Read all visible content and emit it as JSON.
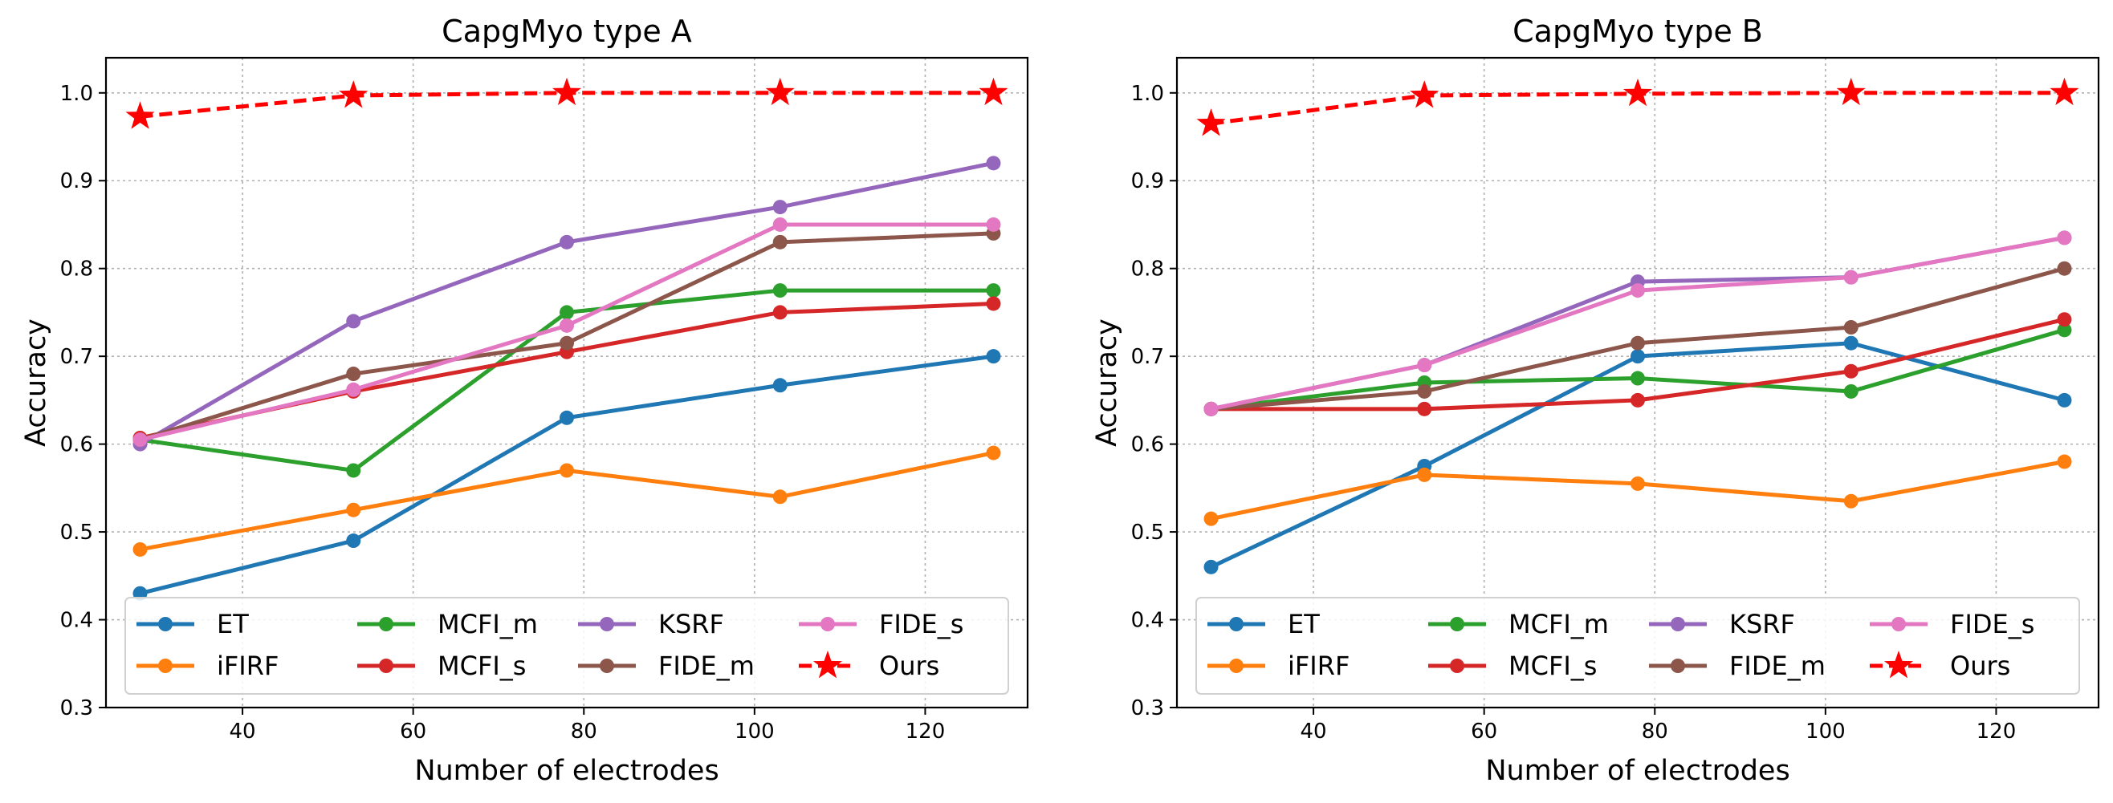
{
  "chart_data": [
    {
      "type": "line",
      "title": "CapgMyo type A",
      "xlabel": "Number of electrodes",
      "ylabel": "Accuracy",
      "x": [
        28,
        53,
        78,
        103,
        128
      ],
      "xlim": [
        24,
        132
      ],
      "ylim": [
        0.3,
        1.04
      ],
      "xticks": [
        40,
        60,
        80,
        100,
        120
      ],
      "yticks": [
        0.3,
        0.4,
        0.5,
        0.6,
        0.7,
        0.8,
        0.9,
        1.0
      ],
      "grid": true,
      "legend_position": "lower center",
      "series": [
        {
          "name": "ET",
          "color": "#1f77b4",
          "marker": "circle",
          "line": "solid",
          "values": [
            0.43,
            0.49,
            0.63,
            0.667,
            0.7
          ]
        },
        {
          "name": "iFIRF",
          "color": "#ff7f0e",
          "marker": "circle",
          "line": "solid",
          "values": [
            0.48,
            0.525,
            0.57,
            0.54,
            0.59
          ]
        },
        {
          "name": "MCFI_m",
          "color": "#2ca02c",
          "marker": "circle",
          "line": "solid",
          "values": [
            0.605,
            0.57,
            0.75,
            0.775,
            0.775
          ]
        },
        {
          "name": "MCFI_s",
          "color": "#d62728",
          "marker": "circle",
          "line": "solid",
          "values": [
            0.607,
            0.66,
            0.705,
            0.75,
            0.76
          ]
        },
        {
          "name": "KSRF",
          "color": "#9467bd",
          "marker": "circle",
          "line": "solid",
          "values": [
            0.6,
            0.74,
            0.83,
            0.87,
            0.92
          ]
        },
        {
          "name": "FIDE_m",
          "color": "#8c564b",
          "marker": "circle",
          "line": "solid",
          "values": [
            0.605,
            0.68,
            0.715,
            0.83,
            0.84
          ]
        },
        {
          "name": "FIDE_s",
          "color": "#e377c2",
          "marker": "circle",
          "line": "solid",
          "values": [
            0.605,
            0.662,
            0.735,
            0.85,
            0.85
          ]
        },
        {
          "name": "Ours",
          "color": "#ff0000",
          "marker": "star",
          "line": "dashed",
          "values": [
            0.973,
            0.997,
            1.0,
            1.0,
            1.0
          ]
        }
      ]
    },
    {
      "type": "line",
      "title": "CapgMyo type B",
      "xlabel": "Number of electrodes",
      "ylabel": "Accuracy",
      "x": [
        28,
        53,
        78,
        103,
        128
      ],
      "xlim": [
        24,
        132
      ],
      "ylim": [
        0.3,
        1.04
      ],
      "xticks": [
        40,
        60,
        80,
        100,
        120
      ],
      "yticks": [
        0.3,
        0.4,
        0.5,
        0.6,
        0.7,
        0.8,
        0.9,
        1.0
      ],
      "grid": true,
      "legend_position": "lower center",
      "series": [
        {
          "name": "ET",
          "color": "#1f77b4",
          "marker": "circle",
          "line": "solid",
          "values": [
            0.46,
            0.575,
            0.7,
            0.715,
            0.65
          ]
        },
        {
          "name": "iFIRF",
          "color": "#ff7f0e",
          "marker": "circle",
          "line": "solid",
          "values": [
            0.515,
            0.565,
            0.555,
            0.535,
            0.58
          ]
        },
        {
          "name": "MCFI_m",
          "color": "#2ca02c",
          "marker": "circle",
          "line": "solid",
          "values": [
            0.64,
            0.67,
            0.675,
            0.66,
            0.73
          ]
        },
        {
          "name": "MCFI_s",
          "color": "#d62728",
          "marker": "circle",
          "line": "solid",
          "values": [
            0.64,
            0.64,
            0.65,
            0.683,
            0.742
          ]
        },
        {
          "name": "KSRF",
          "color": "#9467bd",
          "marker": "circle",
          "line": "solid",
          "values": [
            0.64,
            0.69,
            0.785,
            0.79,
            0.835
          ]
        },
        {
          "name": "FIDE_m",
          "color": "#8c564b",
          "marker": "circle",
          "line": "solid",
          "values": [
            0.64,
            0.66,
            0.715,
            0.733,
            0.8
          ]
        },
        {
          "name": "FIDE_s",
          "color": "#e377c2",
          "marker": "circle",
          "line": "solid",
          "values": [
            0.64,
            0.69,
            0.775,
            0.79,
            0.835
          ]
        },
        {
          "name": "Ours",
          "color": "#ff0000",
          "marker": "star",
          "line": "dashed",
          "values": [
            0.965,
            0.997,
            0.999,
            1.0,
            1.0
          ]
        }
      ]
    }
  ]
}
